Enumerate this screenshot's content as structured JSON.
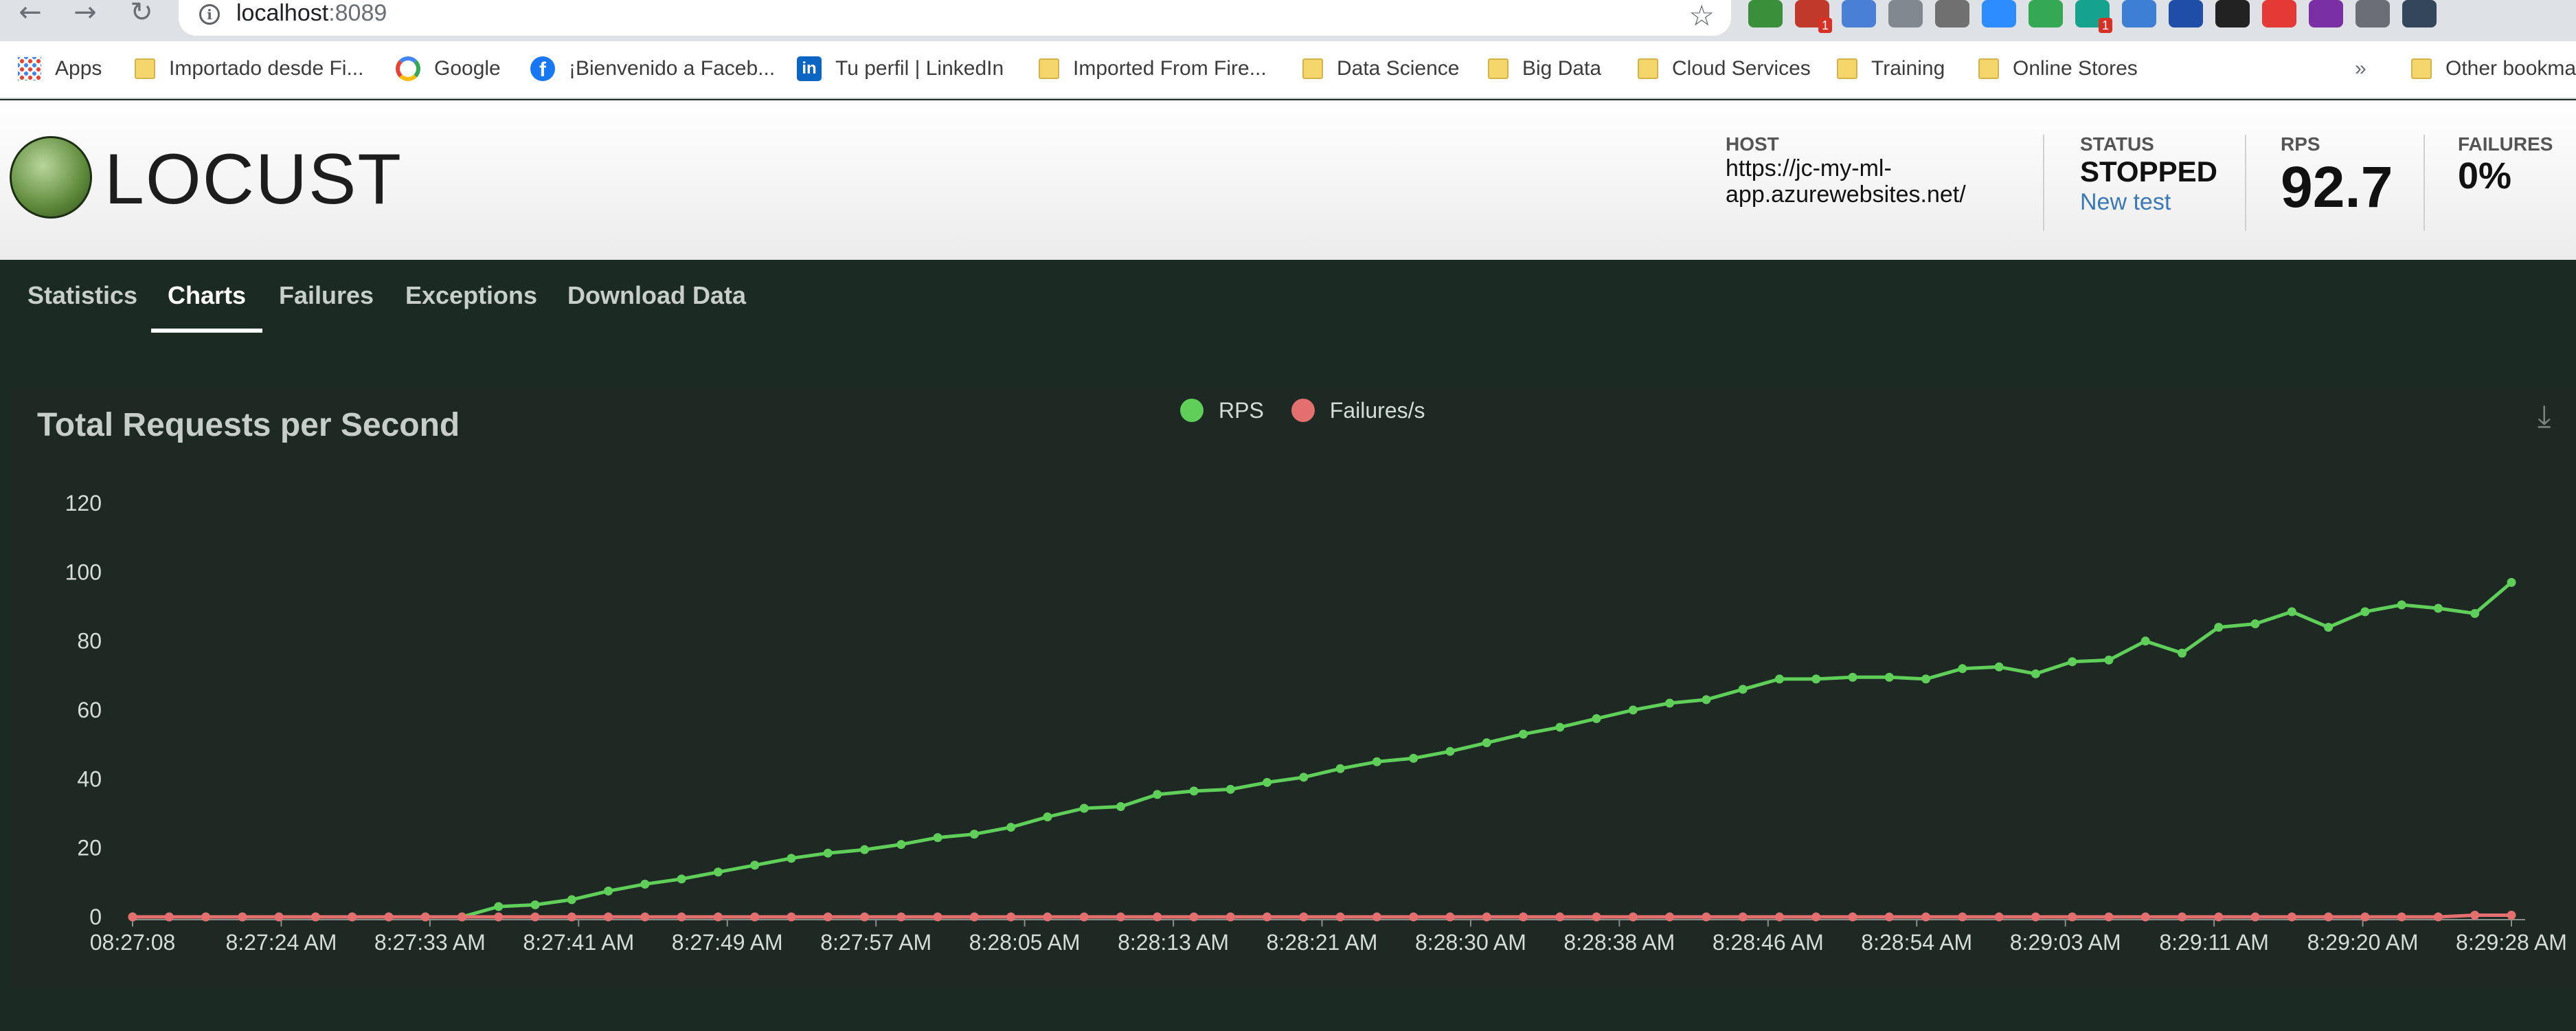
{
  "browser": {
    "back_icon": "←",
    "forward_icon": "→",
    "reload_icon": "↻",
    "url_host": "localhost",
    "url_port": ":8089",
    "star_icon": "☆",
    "extensions": [
      {
        "name": "globe-extension-icon",
        "color": "#3a8f3a"
      },
      {
        "name": "todo-extension-icon",
        "color": "#c0392b",
        "badge": "1"
      },
      {
        "name": "translate-extension-icon",
        "color": "#4a7fd6"
      },
      {
        "name": "record-extension-icon",
        "color": "#808890"
      },
      {
        "name": "screenshot-extension-icon",
        "color": "#707070"
      },
      {
        "name": "zoom-extension-icon",
        "color": "#2d8cff"
      },
      {
        "name": "drive-extension-icon",
        "color": "#34a853"
      },
      {
        "name": "grammar-extension-icon",
        "color": "#15a38d",
        "badge": "1"
      },
      {
        "name": "window-extension-icon",
        "color": "#3d7fd4"
      },
      {
        "name": "malware-extension-icon",
        "color": "#1f4ea8"
      },
      {
        "name": "sync-extension-icon",
        "color": "#222222"
      },
      {
        "name": "bug-extension-icon",
        "color": "#e53935"
      },
      {
        "name": "onenote-extension-icon",
        "color": "#7b2fa4"
      },
      {
        "name": "puzzle-extension-icon",
        "color": "#6b6f75"
      },
      {
        "name": "profile-avatar-icon",
        "color": "#33465c"
      }
    ]
  },
  "bookmarks": [
    {
      "label": "Apps",
      "icon": "apps"
    },
    {
      "label": "Importado desde Fi...",
      "icon": "folder"
    },
    {
      "label": "Google",
      "icon": "google"
    },
    {
      "label": "¡Bienvenido a Faceb...",
      "icon": "facebook"
    },
    {
      "label": "Tu perfil | LinkedIn",
      "icon": "linkedin"
    },
    {
      "label": "Imported From Fire...",
      "icon": "folder"
    },
    {
      "label": "Data Science",
      "icon": "folder"
    },
    {
      "label": "Big Data",
      "icon": "folder"
    },
    {
      "label": "Cloud Services",
      "icon": "folder"
    },
    {
      "label": "Training",
      "icon": "folder"
    },
    {
      "label": "Online Stores",
      "icon": "folder"
    }
  ],
  "bookmarks_more": "»",
  "other_bookmarks": "Other bookma",
  "header": {
    "logo_text": "LOCUST",
    "host_label": "HOST",
    "host_value": "https://jc-my-ml-app.azurewebsites.net/",
    "status_label": "STATUS",
    "status_value": "STOPPED",
    "new_test": "New test",
    "rps_label": "RPS",
    "rps_value": "92.7",
    "failures_label": "FAILURES",
    "failures_value": "0%"
  },
  "tabs": [
    {
      "label": "Statistics",
      "active": false
    },
    {
      "label": "Charts",
      "active": true
    },
    {
      "label": "Failures",
      "active": false
    },
    {
      "label": "Exceptions",
      "active": false
    },
    {
      "label": "Download Data",
      "active": false
    }
  ],
  "chart": {
    "download_icon": "⤓"
  },
  "colors": {
    "rps": "#5fcf5a",
    "failures": "#e46f6f",
    "panel_bg": "#1e2923",
    "tick_text": "#d6dcd8",
    "axis": "#8a8f8c"
  },
  "chart_data": {
    "type": "line",
    "title": "Total Requests per Second",
    "ylim": [
      0,
      120
    ],
    "yticks": [
      0,
      20,
      40,
      60,
      80,
      100,
      120
    ],
    "x_tick_labels": [
      "08:27:08",
      "8:27:24 AM",
      "8:27:33 AM",
      "8:27:41 AM",
      "8:27:49 AM",
      "8:27:57 AM",
      "8:28:05 AM",
      "8:28:13 AM",
      "8:28:21 AM",
      "8:28:30 AM",
      "8:28:38 AM",
      "8:28:46 AM",
      "8:28:54 AM",
      "8:29:03 AM",
      "8:29:11 AM",
      "8:29:20 AM",
      "8:29:28 AM"
    ],
    "legend_position": "top-center",
    "series": [
      {
        "name": "RPS",
        "values": [
          0,
          0,
          0,
          0,
          0,
          0,
          0,
          0,
          0,
          0,
          3,
          3.5,
          5,
          7.5,
          9.5,
          11,
          13,
          15,
          17,
          18.5,
          19.5,
          21,
          23,
          24,
          26,
          29,
          31.5,
          32,
          35.5,
          36.5,
          37,
          39,
          40.5,
          43,
          45,
          46,
          48,
          50.5,
          53,
          55,
          57.5,
          60,
          62,
          63,
          66,
          69,
          69,
          69.5,
          69.5,
          69,
          72,
          72.5,
          70.5,
          74,
          74.5,
          80,
          76.5,
          84,
          85,
          88.5,
          84,
          88.5,
          90.5,
          89.5,
          88,
          97
        ]
      },
      {
        "name": "Failures/s",
        "values": [
          0,
          0,
          0,
          0,
          0,
          0,
          0,
          0,
          0,
          0,
          0,
          0,
          0,
          0,
          0,
          0,
          0,
          0,
          0,
          0,
          0,
          0,
          0,
          0,
          0,
          0,
          0,
          0,
          0,
          0,
          0,
          0,
          0,
          0,
          0,
          0,
          0,
          0,
          0,
          0,
          0,
          0,
          0,
          0,
          0,
          0,
          0,
          0,
          0,
          0,
          0,
          0,
          0,
          0,
          0,
          0,
          0,
          0,
          0,
          0,
          0,
          0,
          0,
          0,
          0.5,
          0.5
        ]
      }
    ]
  }
}
